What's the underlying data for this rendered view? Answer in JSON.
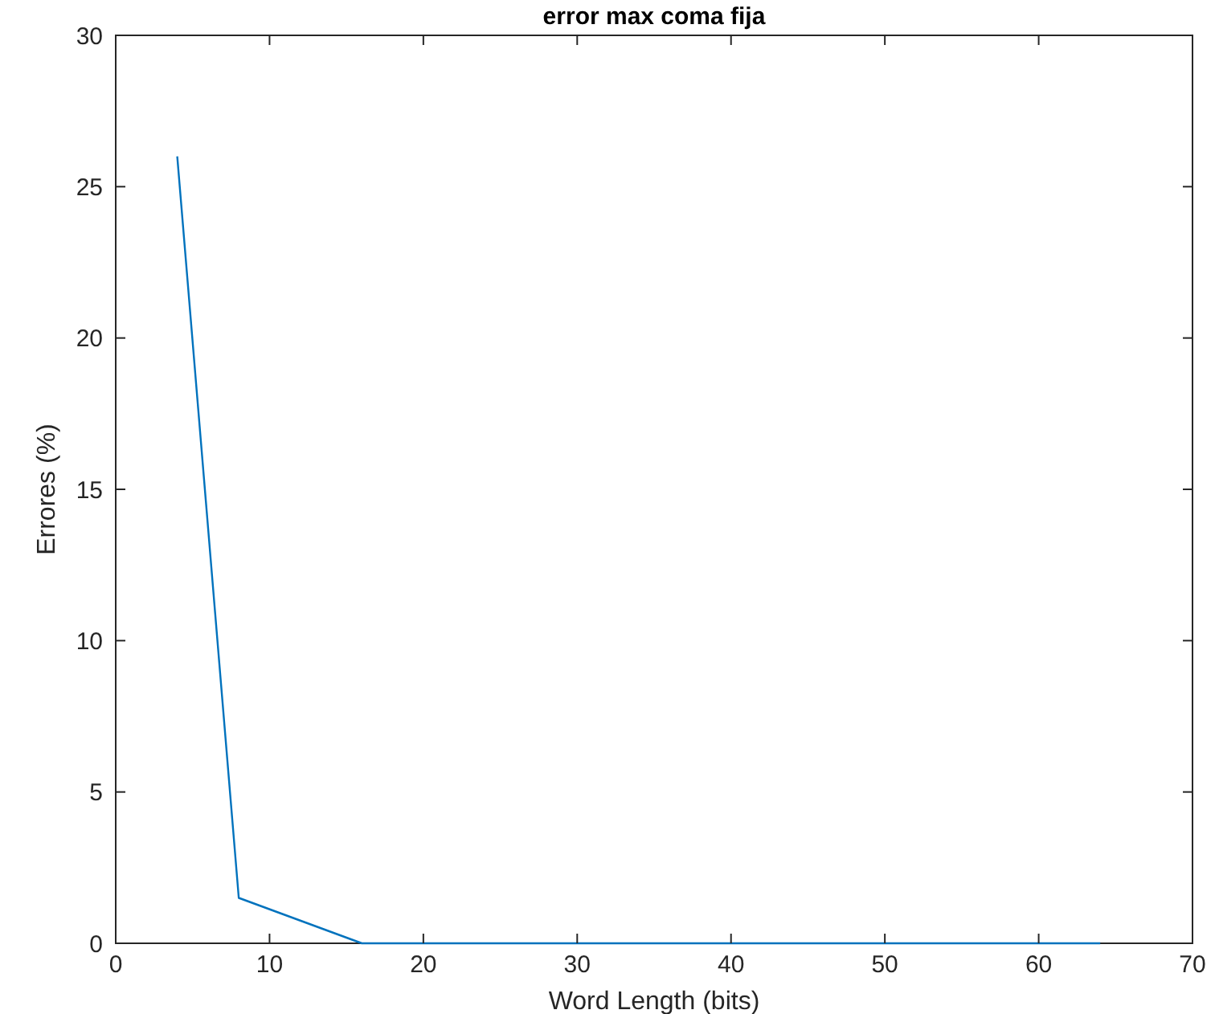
{
  "chart_data": {
    "type": "line",
    "title": "error max coma fija",
    "xlabel": "Word Length (bits)",
    "ylabel": "Errores (%)",
    "x": [
      4,
      8,
      16,
      32,
      64
    ],
    "series": [
      {
        "color": "#0072bd",
        "values": [
          26,
          1.5,
          0,
          0,
          0
        ]
      }
    ],
    "xlim": [
      0,
      70
    ],
    "xticks": [
      0,
      10,
      20,
      30,
      40,
      50,
      60,
      70
    ],
    "ylim": [
      0,
      30
    ],
    "yticks": [
      0,
      5,
      10,
      15,
      20,
      25,
      30
    ],
    "grid": false,
    "marker": "none",
    "line_style": "solid"
  }
}
